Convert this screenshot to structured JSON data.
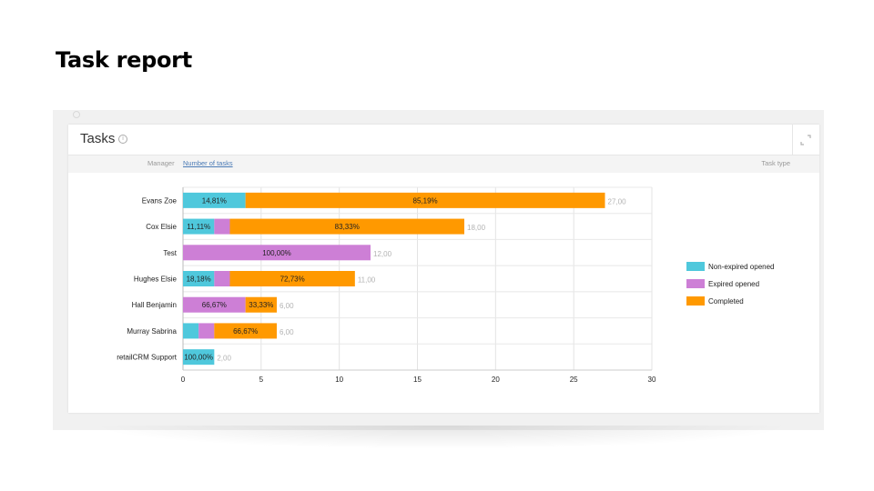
{
  "slide": {
    "title": "Task report"
  },
  "card": {
    "title": "Tasks",
    "filters": {
      "manager": "Manager",
      "measure": "Number of tasks",
      "task_type": "Task type"
    }
  },
  "colors": {
    "non_expired": "#4fc8dc",
    "expired": "#cd7fd6",
    "completed": "#ff9900"
  },
  "chart_data": {
    "type": "bar",
    "orientation": "horizontal",
    "stacked": true,
    "categories": [
      "Evans Zoe",
      "Cox Elsie",
      "Test",
      "Hughes Elsie",
      "Hall Benjamin",
      "Murray Sabrina",
      "retailCRM Support"
    ],
    "series": [
      {
        "name": "Non-expired opened",
        "color": "#4fc8dc",
        "values": [
          4,
          2,
          0,
          2,
          0,
          1,
          2
        ],
        "labels": [
          "14,81%",
          "11,11%",
          "",
          "18,18%",
          "",
          "",
          "100,00%"
        ]
      },
      {
        "name": "Expired opened",
        "color": "#cd7fd6",
        "values": [
          0,
          1,
          12,
          1,
          4,
          1,
          0
        ],
        "labels": [
          "",
          "",
          "100,00%",
          "",
          "66,67%",
          "",
          ""
        ]
      },
      {
        "name": "Completed",
        "color": "#ff9900",
        "values": [
          23,
          15,
          0,
          8,
          2,
          4,
          0
        ],
        "labels": [
          "85,19%",
          "83,33%",
          "",
          "72,73%",
          "33,33%",
          "66,67%",
          ""
        ]
      }
    ],
    "totals": [
      "27,00",
      "18,00",
      "12,00",
      "11,00",
      "6,00",
      "6,00",
      "2,00"
    ],
    "xlim": [
      0,
      30
    ],
    "xticks": [
      "0",
      "5",
      "10",
      "15",
      "20",
      "25",
      "30"
    ],
    "grid": true,
    "legend_position": "right"
  }
}
